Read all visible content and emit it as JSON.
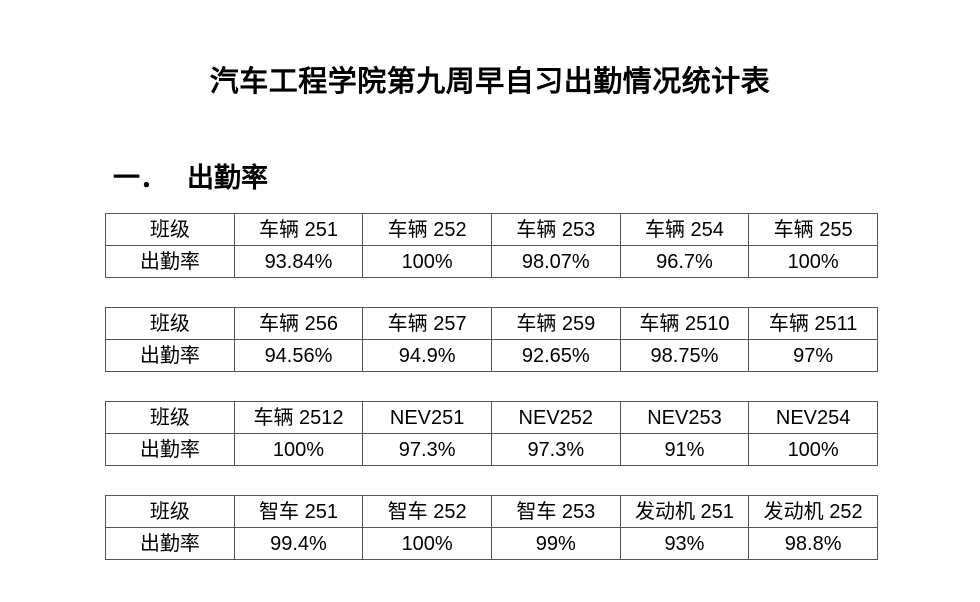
{
  "document": {
    "title": "汽车工程学院第九周早自习出勤情况统计表",
    "section": {
      "number": "一．",
      "title": "出勤率"
    }
  },
  "tables": [
    {
      "row1_label": "班级",
      "row2_label": "出勤率",
      "classes": [
        "车辆 251",
        "车辆 252",
        "车辆 253",
        "车辆 254",
        "车辆 255"
      ],
      "rates": [
        "93.84%",
        "100%",
        "98.07%",
        "96.7%",
        "100%"
      ]
    },
    {
      "row1_label": "班级",
      "row2_label": "出勤率",
      "classes": [
        "车辆 256",
        "车辆 257",
        "车辆 259",
        "车辆 2510",
        "车辆 2511"
      ],
      "rates": [
        "94.56%",
        "94.9%",
        "92.65%",
        "98.75%",
        "97%"
      ]
    },
    {
      "row1_label": "班级",
      "row2_label": "出勤率",
      "classes": [
        "车辆 2512",
        "NEV251",
        "NEV252",
        "NEV253",
        "NEV254"
      ],
      "rates": [
        "100%",
        "97.3%",
        "97.3%",
        "91%",
        "100%"
      ]
    },
    {
      "row1_label": "班级",
      "row2_label": "出勤率",
      "classes": [
        "智车 251",
        "智车 252",
        "智车 253",
        "发动机 251",
        "发动机 252"
      ],
      "rates": [
        "99.4%",
        "100%",
        "99%",
        "93%",
        "98.8%"
      ]
    }
  ]
}
